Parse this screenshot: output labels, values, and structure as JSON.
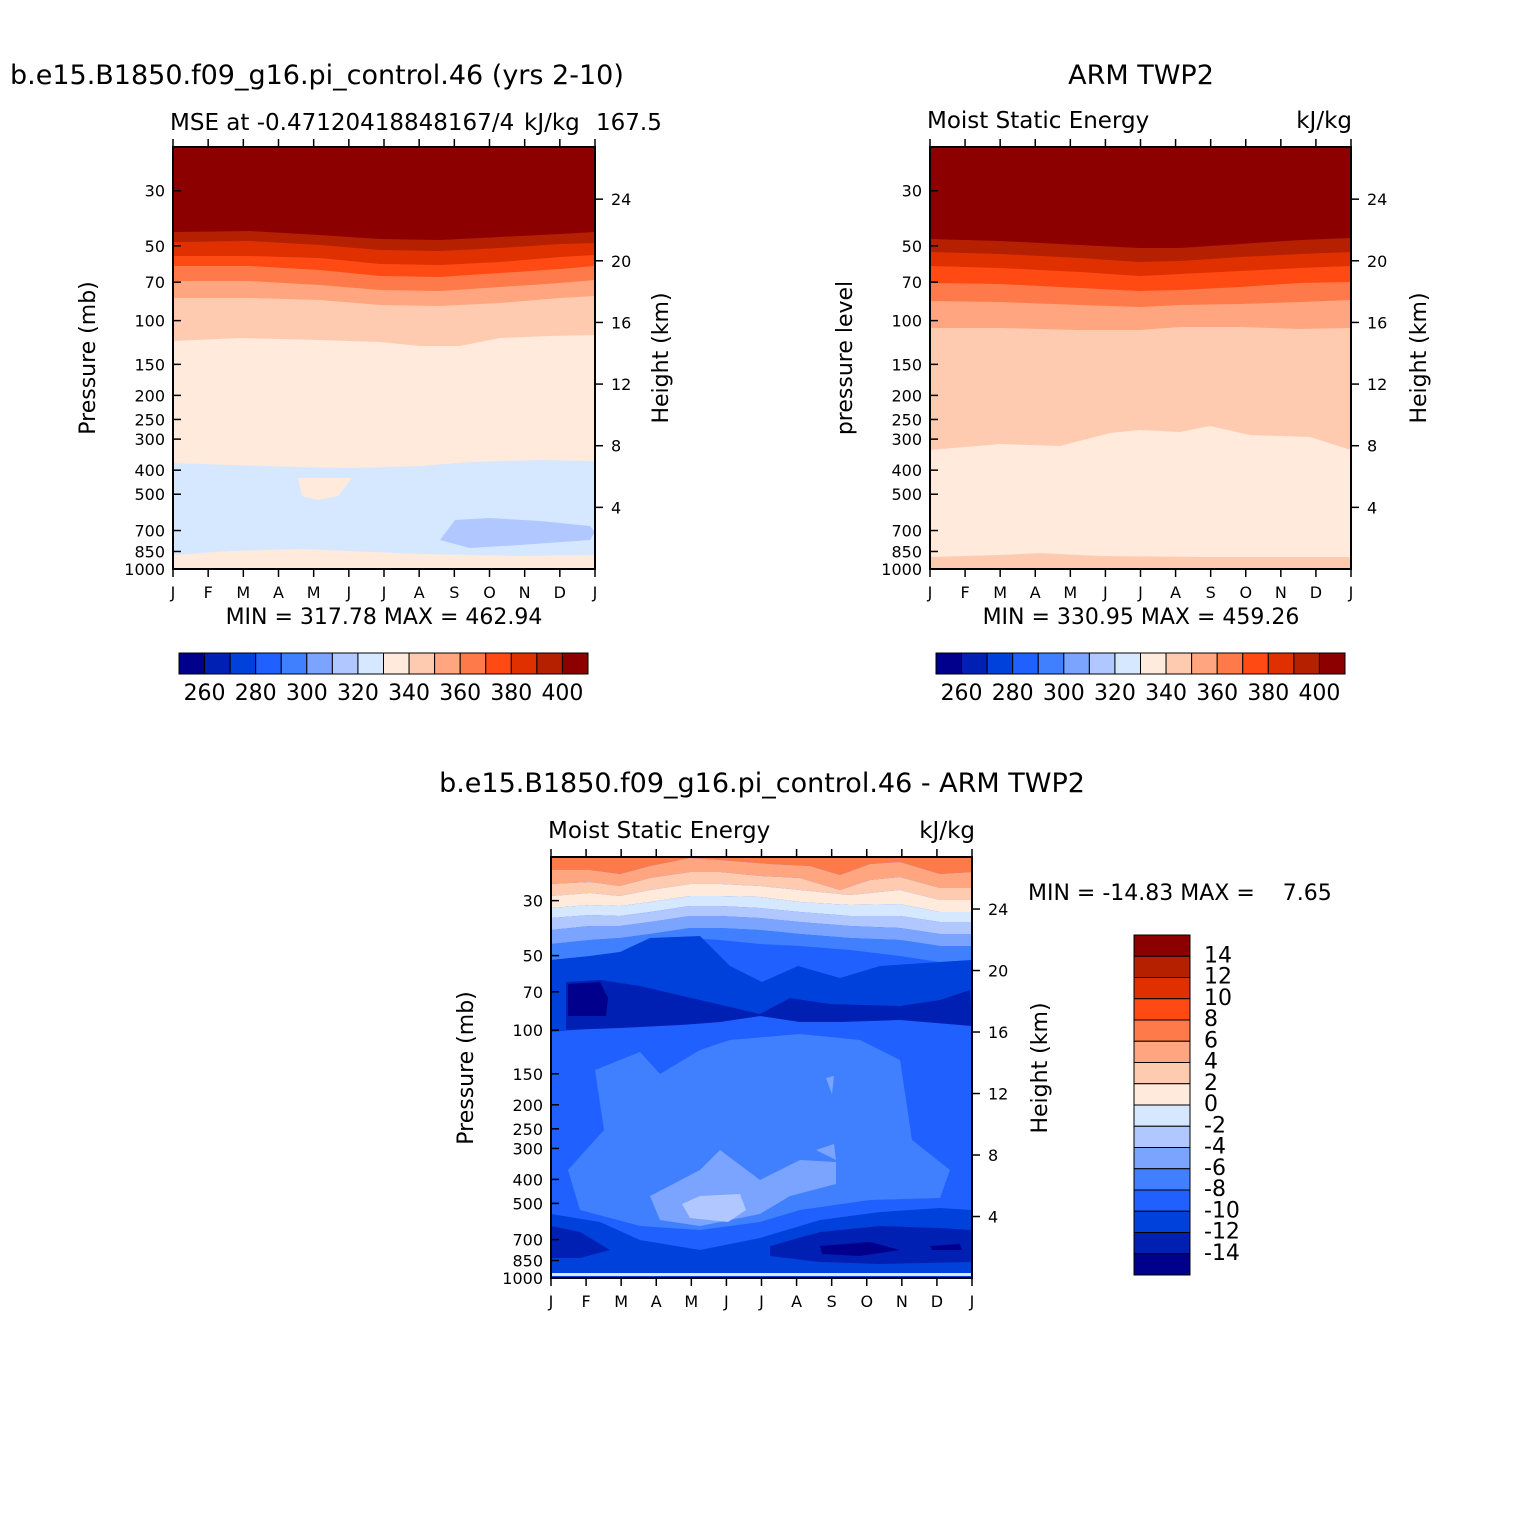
{
  "palette_abs": [
    "#00008c",
    "#0020b4",
    "#0041dc",
    "#2060ff",
    "#4080ff",
    "#7aa4ff",
    "#b0c8ff",
    "#d6e8ff",
    "#ffeadc",
    "#ffcbb0",
    "#ffa680",
    "#ff7a4a",
    "#ff4a14",
    "#e03000",
    "#b42000",
    "#8c0000"
  ],
  "palette_diff": [
    "#00008c",
    "#0020b4",
    "#0041dc",
    "#2060ff",
    "#4080ff",
    "#7aa4ff",
    "#b0c8ff",
    "#d6e8ff",
    "#ffeadc",
    "#ffcbb0",
    "#ffa680",
    "#ff7a4a",
    "#ff4a14",
    "#e03000",
    "#b42000",
    "#8c0000"
  ],
  "months": [
    "J",
    "F",
    "M",
    "A",
    "M",
    "J",
    "J",
    "A",
    "S",
    "O",
    "N",
    "D",
    "J"
  ],
  "chart_data": [
    {
      "type": "heatmap",
      "title": "b.e15.B1850.f09_g16.pi_control.46 (yrs 2-10)",
      "left_subtitle": "MSE at -0.47120418848167/4",
      "right_subtitle": "kJ/kg",
      "right_subtitle_extra": "167.5",
      "ylabel": "Pressure (mb)",
      "ylabel_right": "Height (km)",
      "y_ticks": [
        "30",
        "50",
        "70",
        "100",
        "150",
        "200",
        "250",
        "300",
        "400",
        "500",
        "700",
        "850",
        "1000"
      ],
      "y_right_ticks": [
        "24",
        "20",
        "16",
        "12",
        "8",
        "4"
      ],
      "stats": "MIN = 317.78 MAX = 462.94",
      "colorbar_labels": [
        "260",
        "280",
        "300",
        "320",
        "340",
        "360",
        "380",
        "400"
      ]
    },
    {
      "type": "heatmap",
      "title": "ARM TWP2",
      "left_subtitle": "Moist Static Energy",
      "right_subtitle": "kJ/kg",
      "ylabel": "pressure level",
      "ylabel_right": "Height (km)",
      "y_ticks": [
        "30",
        "50",
        "70",
        "100",
        "150",
        "200",
        "250",
        "300",
        "400",
        "500",
        "700",
        "850",
        "1000"
      ],
      "y_right_ticks": [
        "24",
        "20",
        "16",
        "12",
        "8",
        "4"
      ],
      "stats": "MIN = 330.95 MAX = 459.26",
      "colorbar_labels": [
        "260",
        "280",
        "300",
        "320",
        "340",
        "360",
        "380",
        "400"
      ]
    },
    {
      "type": "heatmap",
      "title": "b.e15.B1850.f09_g16.pi_control.46 - ARM TWP2",
      "left_subtitle": "Moist Static Energy",
      "right_subtitle": "kJ/kg",
      "ylabel": "Pressure (mb)",
      "ylabel_right": "Height (km)",
      "y_ticks": [
        "30",
        "50",
        "70",
        "100",
        "150",
        "200",
        "250",
        "300",
        "400",
        "500",
        "700",
        "850",
        "1000"
      ],
      "y_right_ticks": [
        "24",
        "20",
        "16",
        "12",
        "8",
        "4"
      ],
      "stats": "MIN = -14.83 MAX =    7.65",
      "colorbar_labels": [
        "14",
        "12",
        "10",
        "8",
        "6",
        "4",
        "2",
        "0",
        "-2",
        "-4",
        "-6",
        "-8",
        "-10",
        "-12",
        "-14"
      ]
    }
  ]
}
